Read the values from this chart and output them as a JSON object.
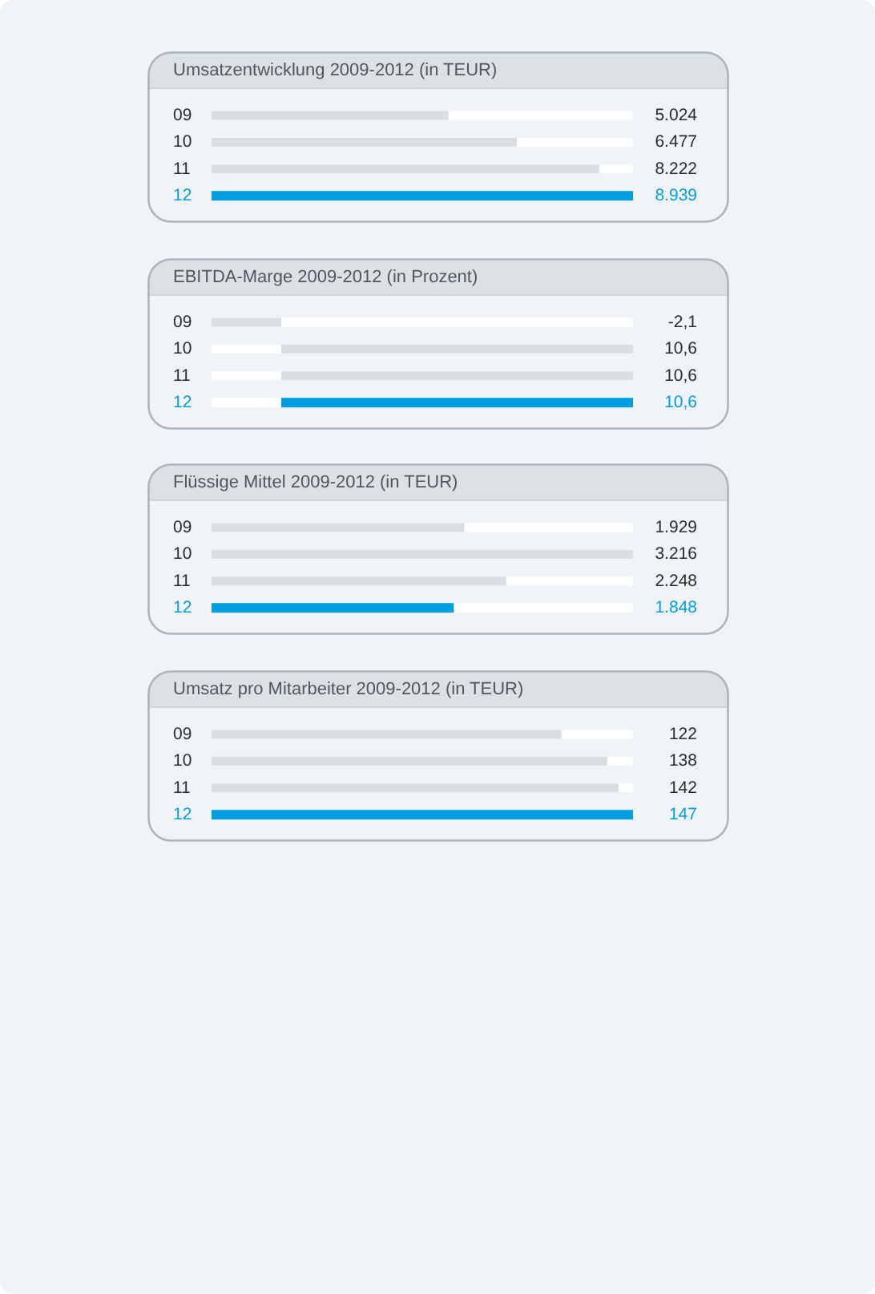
{
  "chart_data": [
    {
      "type": "bar",
      "orientation": "horizontal",
      "title": "Umsatzentwicklung 2009-2012 (in TEUR)",
      "categories": [
        "09",
        "10",
        "11",
        "12"
      ],
      "values": [
        5024,
        6477,
        8222,
        8939
      ],
      "value_labels": [
        "5.024",
        "6.477",
        "8.222",
        "8.939"
      ],
      "colors": [
        "#d9dee3",
        "#d9dee3",
        "#d9dee3",
        "#009ee0"
      ]
    },
    {
      "type": "bar",
      "orientation": "horizontal",
      "title": "EBITDA-Marge 2009-2012 (in Prozent)",
      "categories": [
        "09",
        "10",
        "11",
        "12"
      ],
      "values": [
        -2.1,
        10.6,
        10.6,
        10.6
      ],
      "value_labels": [
        "-2,1",
        "10,6",
        "10,6",
        "10,6"
      ],
      "colors": [
        "#d9dee3",
        "#d9dee3",
        "#d9dee3",
        "#009ee0"
      ]
    },
    {
      "type": "bar",
      "orientation": "horizontal",
      "title": "Flüssige Mittel 2009-2012 (in TEUR)",
      "categories": [
        "09",
        "10",
        "11",
        "12"
      ],
      "values": [
        1929,
        3216,
        2248,
        1848
      ],
      "value_labels": [
        "1.929",
        "3.216",
        "2.248",
        "1.848"
      ],
      "colors": [
        "#d9dee3",
        "#d9dee3",
        "#d9dee3",
        "#009ee0"
      ]
    },
    {
      "type": "bar",
      "orientation": "horizontal",
      "title": "Umsatz pro Mitarbeiter 2009-2012 (in TEUR)",
      "categories": [
        "09",
        "10",
        "11",
        "12"
      ],
      "values": [
        122,
        138,
        142,
        147
      ],
      "value_labels": [
        "122",
        "138",
        "142",
        "147"
      ],
      "colors": [
        "#d9dee3",
        "#d9dee3",
        "#d9dee3",
        "#009ee0"
      ]
    }
  ]
}
